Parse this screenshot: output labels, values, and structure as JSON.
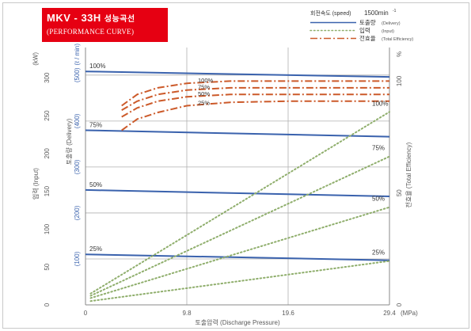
{
  "header": {
    "title": "MKV - 33H",
    "title_ko": "성능곡선",
    "subtitle": "(PERFORMANCE CURVE)"
  },
  "colors": {
    "title_bg": "#e60012",
    "delivery": "#3a62ad",
    "input": "#8fae6c",
    "efficiency": "#cc5a2a",
    "grid": "#b0b0b0",
    "axis_text": "#5a5a5a"
  },
  "legend": {
    "speed_label": "회전속도 (speed)",
    "speed_value": "1500min",
    "speed_sup": "-1",
    "items": [
      {
        "key": "delivery",
        "label": "토출량",
        "label_en": "(Delivery)"
      },
      {
        "key": "input",
        "label": "입력",
        "label_en": "(Input)"
      },
      {
        "key": "efficiency",
        "label": "전효율",
        "label_en": "(Total Efficiency)"
      }
    ]
  },
  "axes": {
    "x_label": "토출압력 (Discharge Pressure)",
    "x_unit": "(MPa)",
    "x_ticks": [
      "0",
      "9.8",
      "19.6",
      "29.4"
    ],
    "delivery_label": "토출량 (Delivery)",
    "delivery_unit": "(ℓ / min)",
    "delivery_ticks": [
      "(100)",
      "(200)",
      "(300)",
      "(400)",
      "(500)"
    ],
    "input_label": "입력 (Input)",
    "input_unit": "(kW)",
    "input_ticks": [
      "0",
      "50",
      "100",
      "150",
      "200",
      "250",
      "300"
    ],
    "eff_label": "전효율 (Total Efficiency)",
    "eff_unit": "%",
    "eff_ticks": [
      "0",
      "50",
      "100"
    ]
  },
  "chart_data": {
    "type": "line",
    "title": "MKV - 33H 성능곡선 (PERFORMANCE CURVE)",
    "xlabel": "토출압력 (Discharge Pressure) (MPa)",
    "xlim": [
      0,
      29.4
    ],
    "x_ticks": [
      0,
      9.8,
      19.6,
      29.4
    ],
    "ylim_delivery": [
      0,
      560
    ],
    "ylim_input": [
      0,
      340
    ],
    "ylim_efficiency": [
      0,
      115
    ],
    "grid": true,
    "legend_position": "top-right",
    "speed": "1500min-1",
    "series": [
      {
        "name": "토출량 (Delivery)",
        "axis": "delivery",
        "label": "100%",
        "x": [
          0,
          29.4
        ],
        "y": [
          508,
          496
        ]
      },
      {
        "name": "토출량 (Delivery)",
        "axis": "delivery",
        "label": "75%",
        "x": [
          0,
          29.4
        ],
        "y": [
          380,
          366
        ]
      },
      {
        "name": "토출량 (Delivery)",
        "axis": "delivery",
        "label": "50%",
        "x": [
          0,
          29.4
        ],
        "y": [
          250,
          236
        ]
      },
      {
        "name": "토출량 (Delivery)",
        "axis": "delivery",
        "label": "25%",
        "x": [
          0,
          29.4
        ],
        "y": [
          110,
          97
        ]
      },
      {
        "name": "입력 (Input)",
        "axis": "input",
        "label": "100%",
        "x": [
          0.5,
          29.4
        ],
        "y": [
          15,
          255
        ]
      },
      {
        "name": "입력 (Input)",
        "axis": "input",
        "label": "75%",
        "x": [
          0.5,
          29.4
        ],
        "y": [
          12,
          196
        ]
      },
      {
        "name": "입력 (Input)",
        "axis": "input",
        "label": "50%",
        "x": [
          0.5,
          29.4
        ],
        "y": [
          9,
          129
        ]
      },
      {
        "name": "입력 (Input)",
        "axis": "input",
        "label": "25%",
        "x": [
          0.5,
          29.4
        ],
        "y": [
          5,
          58
        ]
      },
      {
        "name": "전효율 (Total Efficiency)",
        "axis": "efficiency",
        "label": "100%",
        "x": [
          3.5,
          5,
          7,
          9.8,
          14,
          19.6,
          24.5,
          29.4
        ],
        "y": [
          89,
          94,
          97,
          99,
          100,
          100,
          100,
          100
        ]
      },
      {
        "name": "전효율 (Total Efficiency)",
        "axis": "efficiency",
        "label": "75%",
        "x": [
          3.5,
          5,
          7,
          9.8,
          14,
          19.6,
          24.5,
          29.4
        ],
        "y": [
          87,
          91,
          94,
          96,
          97,
          97,
          97,
          97
        ]
      },
      {
        "name": "전효율 (Total Efficiency)",
        "axis": "efficiency",
        "label": "50%",
        "x": [
          3.5,
          5,
          7,
          9.8,
          14,
          19.6,
          24.5,
          29.4
        ],
        "y": [
          84,
          88,
          91,
          93,
          94,
          94,
          94,
          94
        ]
      },
      {
        "name": "전효율 (Total Efficiency)",
        "axis": "efficiency",
        "label": "25%",
        "x": [
          3.5,
          5,
          7,
          9.8,
          14,
          19.6,
          24.5,
          29.4
        ],
        "y": [
          78,
          83,
          86,
          89,
          90.5,
          91,
          91,
          91
        ]
      }
    ]
  }
}
